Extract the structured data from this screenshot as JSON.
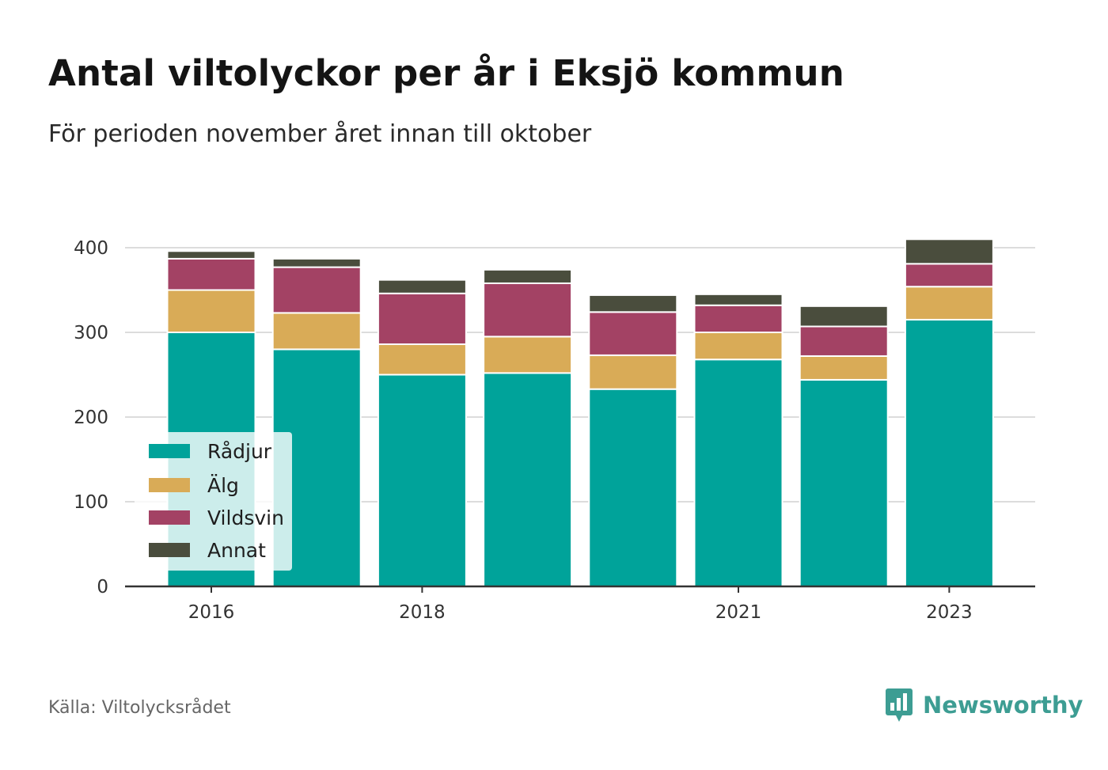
{
  "title": "Antal viltolyckor per år i Eksjö kommun",
  "subtitle": "För perioden november året innan till oktober",
  "source": "Källa: Viltolycksrådet",
  "brand": {
    "name": "Newsworthy",
    "icon": "newsworthy-logo-icon",
    "color": "#3d9d93"
  },
  "chart_data": {
    "type": "bar",
    "stacked": true,
    "categories": [
      "2016",
      "2017",
      "2018",
      "2019",
      "2020",
      "2021",
      "2022",
      "2023"
    ],
    "x_tick_labels": [
      "2016",
      "",
      "2018",
      "",
      "",
      "2021",
      "",
      "2023"
    ],
    "series": [
      {
        "name": "Rådjur",
        "color": "#00a39a",
        "values": [
          300,
          280,
          250,
          252,
          233,
          268,
          244,
          315
        ]
      },
      {
        "name": "Älg",
        "color": "#d9ab57",
        "values": [
          50,
          43,
          36,
          43,
          40,
          32,
          28,
          39
        ]
      },
      {
        "name": "Vildsvin",
        "color": "#a34264",
        "values": [
          37,
          54,
          60,
          63,
          51,
          32,
          35,
          27
        ]
      },
      {
        "name": "Annat",
        "color": "#4a4d3d",
        "values": [
          9,
          10,
          16,
          16,
          20,
          13,
          24,
          29
        ]
      }
    ],
    "ylim": [
      0,
      420
    ],
    "y_ticks": [
      0,
      100,
      200,
      300,
      400
    ],
    "grid": true,
    "legend": "bottom-left"
  }
}
